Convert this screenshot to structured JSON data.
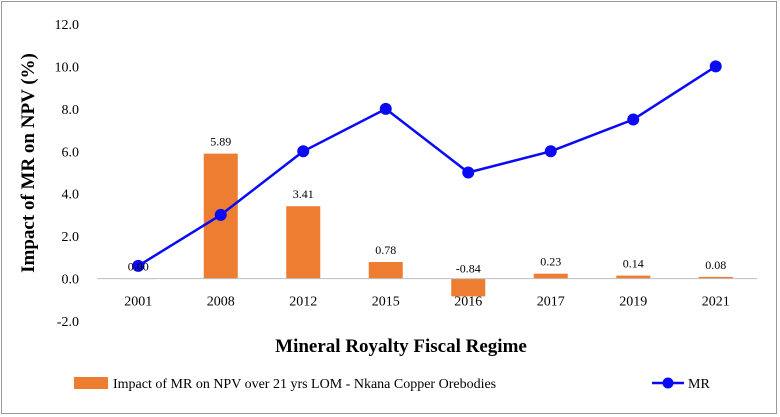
{
  "chart_data": {
    "type": "bar+line",
    "xlabel": "Mineral Royalty Fiscal Regime",
    "ylabel": "Impact of MR on NPV (%)",
    "ylim": [
      -2.0,
      12.0
    ],
    "ytick_step": 2.0,
    "categories": [
      "2001",
      "2008",
      "2012",
      "2015",
      "2016",
      "2017",
      "2019",
      "2021"
    ],
    "series": [
      {
        "name": "Impact of MR on NPV over 21 yrs LOM - Nkana Copper Orebodies",
        "kind": "bar",
        "color": "#ED7D31",
        "values": [
          0.0,
          5.89,
          3.41,
          0.78,
          -0.84,
          0.23,
          0.14,
          0.08
        ],
        "labels": [
          "0.00",
          "5.89",
          "3.41",
          "0.78",
          "-0.84",
          "0.23",
          "0.14",
          "0.08"
        ]
      },
      {
        "name": "MR",
        "kind": "line",
        "color": "#0A0AF5",
        "values": [
          0.6,
          3.0,
          6.0,
          8.0,
          5.0,
          6.0,
          7.5,
          10.0
        ]
      }
    ],
    "negative_label_color": "#FF0000",
    "legend_position": "bottom"
  }
}
